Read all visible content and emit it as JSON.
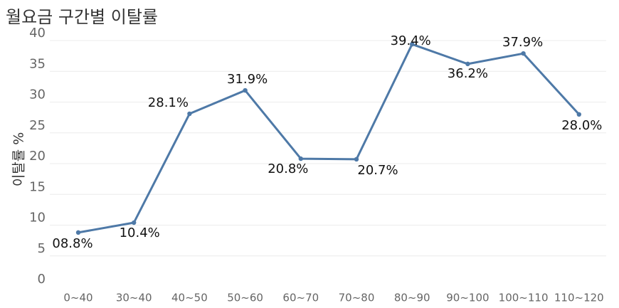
{
  "chart_data": {
    "type": "line",
    "title": "월요금 구간별 이탈률",
    "xlabel": "",
    "ylabel": "이탈률 %",
    "ylim": [
      0,
      40
    ],
    "yticks": [
      0,
      5,
      10,
      15,
      20,
      25,
      30,
      35,
      40
    ],
    "grid": true,
    "categories": [
      "0~40",
      "30~40",
      "40~50",
      "50~60",
      "60~70",
      "70~80",
      "80~90",
      "90~100",
      "100~110",
      "110~120"
    ],
    "values": [
      8.8,
      10.4,
      28.1,
      31.9,
      20.8,
      20.7,
      39.4,
      36.2,
      37.9,
      28.0
    ],
    "data_labels": [
      "08.8%",
      "10.4%",
      "28.1%",
      "31.9%",
      "20.8%",
      "20.7%",
      "39.4%",
      "36.2%",
      "37.9%",
      "28.0%"
    ],
    "line_color": "#4e79a7"
  }
}
